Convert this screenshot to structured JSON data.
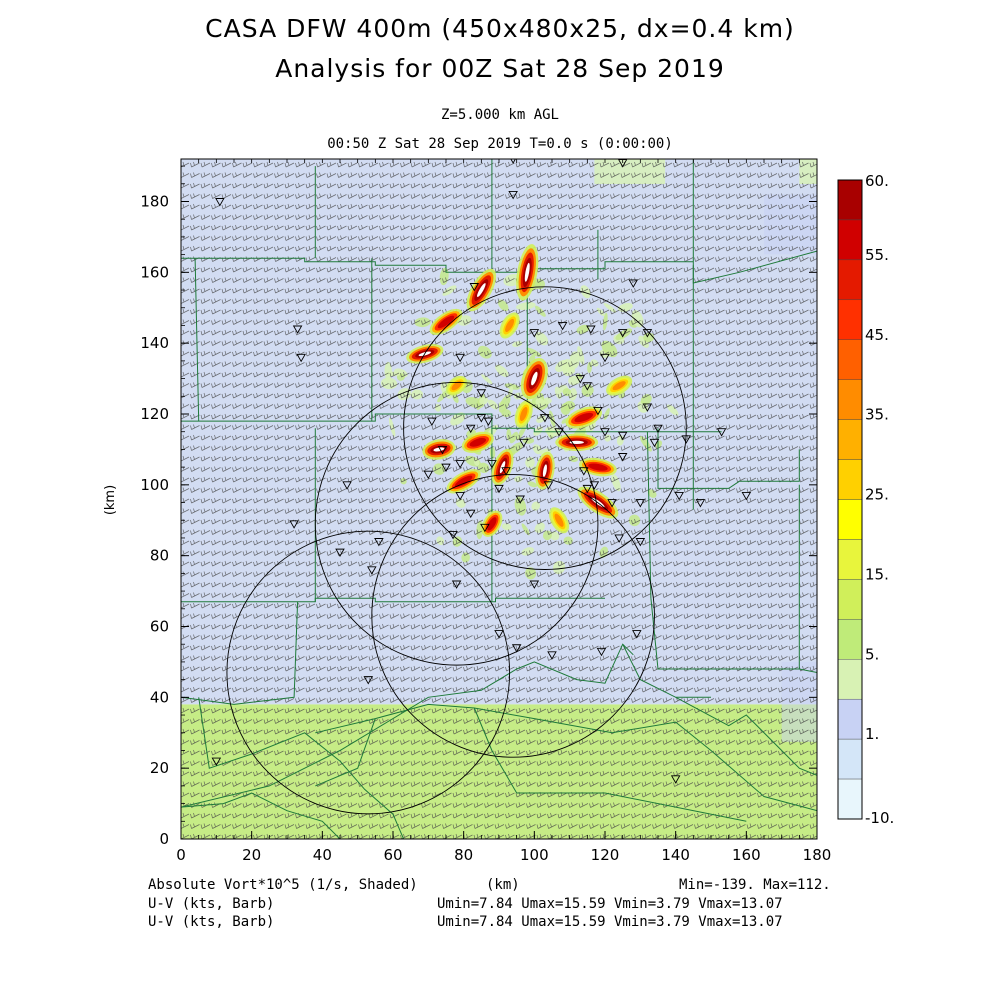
{
  "header": {
    "title_line1": "CASA DFW 400m (450x480x25, dx=0.4 km)",
    "title_line2": "Analysis for 00Z Sat 28 Sep 2019",
    "level": "Z=5.000 km AGL",
    "valid_time": "00:50 Z Sat 28 Sep 2019     T=0.0 s (0:00:00)"
  },
  "footer": {
    "field_label": "Absolute Vort*10^5 (1/s, Shaded)",
    "x_unit": "(km)",
    "minmax": "Min=-139. Max=112.",
    "barb1_label": "U-V (kts, Barb)",
    "barb1_stats": "Umin=7.84 Umax=15.59 Vmin=3.79 Vmax=13.07",
    "barb2_label": "U-V (kts, Barb)",
    "barb2_stats": "Umin=7.84 Umax=15.59 Vmin=3.79 Vmax=13.07"
  },
  "chart_data": {
    "type": "heatmap",
    "xlabel": "(km)",
    "ylabel": "(km)",
    "xlim": [
      0,
      180
    ],
    "ylim": [
      0,
      192
    ],
    "x_ticks": [
      "0",
      "20",
      "40",
      "60",
      "80",
      "100",
      "120",
      "140",
      "160",
      "180"
    ],
    "y_ticks": [
      "0",
      "20",
      "40",
      "60",
      "80",
      "100",
      "120",
      "140",
      "160",
      "180"
    ],
    "colorbar": {
      "labels": [
        "60.",
        "55.",
        "45.",
        "35.",
        "25.",
        "15.",
        "5.",
        "1.",
        "-10."
      ],
      "colors": [
        "#a80000",
        "#d00000",
        "#e41a00",
        "#ff3000",
        "#ff6000",
        "#ff8c00",
        "#ffb000",
        "#ffd000",
        "#ffff00",
        "#e8f53c",
        "#d0ef5a",
        "#bfeb79",
        "#d8f2b4",
        "#c8d2f4",
        "#d4e6f8",
        "#e8f6fc"
      ]
    },
    "background_colors": {
      "upper": "#d2dcf2",
      "lower": "#c6ec86"
    },
    "radar_rings": [
      {
        "cx": 103,
        "cy": 116,
        "r": 40
      },
      {
        "cx": 78,
        "cy": 89,
        "r": 40
      },
      {
        "cx": 94,
        "cy": 63,
        "r": 40
      },
      {
        "cx": 53,
        "cy": 47,
        "r": 40
      }
    ],
    "radar_sites": [
      [
        11,
        180
      ],
      [
        33,
        144
      ],
      [
        34,
        136
      ],
      [
        47,
        100
      ],
      [
        32,
        89
      ],
      [
        45,
        81
      ],
      [
        56,
        84
      ],
      [
        54,
        76
      ],
      [
        78,
        72
      ],
      [
        90,
        58
      ],
      [
        95,
        54
      ],
      [
        105,
        52
      ],
      [
        119,
        53
      ],
      [
        129,
        58
      ],
      [
        10,
        22
      ],
      [
        140,
        17
      ],
      [
        53,
        45
      ],
      [
        71,
        118
      ],
      [
        74,
        110
      ],
      [
        70,
        103
      ],
      [
        75,
        105
      ],
      [
        79,
        106
      ],
      [
        79,
        97
      ],
      [
        82,
        116
      ],
      [
        85,
        119
      ],
      [
        87,
        118
      ],
      [
        88,
        106
      ],
      [
        90,
        99
      ],
      [
        92,
        104
      ],
      [
        96,
        96
      ],
      [
        97,
        112
      ],
      [
        103,
        119
      ],
      [
        107,
        115
      ],
      [
        104,
        100
      ],
      [
        115,
        99
      ],
      [
        114,
        104
      ],
      [
        117,
        100
      ],
      [
        122,
        95
      ],
      [
        125,
        108
      ],
      [
        118,
        121
      ],
      [
        120,
        115
      ],
      [
        125,
        114
      ],
      [
        132,
        122
      ],
      [
        134,
        112
      ],
      [
        135,
        116
      ],
      [
        113,
        130
      ],
      [
        115,
        128
      ],
      [
        120,
        136
      ],
      [
        125,
        143
      ],
      [
        132,
        143
      ],
      [
        128,
        157
      ],
      [
        116,
        144
      ],
      [
        108,
        145
      ],
      [
        100,
        143
      ],
      [
        85,
        126
      ],
      [
        82,
        92
      ],
      [
        77,
        86
      ],
      [
        86,
        88
      ],
      [
        100,
        72
      ],
      [
        83,
        156
      ],
      [
        79,
        136
      ],
      [
        147,
        95
      ],
      [
        141,
        97
      ],
      [
        124,
        85
      ],
      [
        130,
        84
      ],
      [
        130,
        95
      ],
      [
        143,
        113
      ],
      [
        153,
        115
      ],
      [
        94,
        182
      ],
      [
        94,
        192
      ],
      [
        125,
        191
      ],
      [
        160,
        97
      ]
    ],
    "vorticity_cores": [
      {
        "x": 98,
        "y": 160,
        "a": 6,
        "b": 1.5,
        "ang": 80,
        "v": 60
      },
      {
        "x": 85,
        "y": 155,
        "a": 5,
        "b": 1.5,
        "ang": 60,
        "v": 55
      },
      {
        "x": 75,
        "y": 146,
        "a": 4,
        "b": 1.3,
        "ang": 35,
        "v": 50
      },
      {
        "x": 69,
        "y": 137,
        "a": 4,
        "b": 1.3,
        "ang": 15,
        "v": 55
      },
      {
        "x": 100,
        "y": 130,
        "a": 4.5,
        "b": 1.8,
        "ang": 70,
        "v": 60
      },
      {
        "x": 114,
        "y": 119,
        "a": 4,
        "b": 1.4,
        "ang": 20,
        "v": 45
      },
      {
        "x": 112,
        "y": 112,
        "a": 4.5,
        "b": 1.3,
        "ang": 0,
        "v": 55
      },
      {
        "x": 118,
        "y": 105,
        "a": 4,
        "b": 1.3,
        "ang": -10,
        "v": 45
      },
      {
        "x": 118,
        "y": 95,
        "a": 5,
        "b": 1.5,
        "ang": -35,
        "v": 55
      },
      {
        "x": 103,
        "y": 104,
        "a": 4,
        "b": 1.4,
        "ang": 80,
        "v": 55
      },
      {
        "x": 91,
        "y": 105,
        "a": 4,
        "b": 1.4,
        "ang": 70,
        "v": 60
      },
      {
        "x": 84,
        "y": 112,
        "a": 3.5,
        "b": 1.4,
        "ang": 20,
        "v": 45
      },
      {
        "x": 73,
        "y": 110,
        "a": 3.5,
        "b": 1.5,
        "ang": 10,
        "v": 55
      },
      {
        "x": 80,
        "y": 101,
        "a": 4,
        "b": 1.3,
        "ang": 30,
        "v": 50
      },
      {
        "x": 88,
        "y": 89,
        "a": 3,
        "b": 1.3,
        "ang": 60,
        "v": 45
      },
      {
        "x": 97,
        "y": 120,
        "a": 3,
        "b": 1.2,
        "ang": 70,
        "v": 30
      },
      {
        "x": 93,
        "y": 145,
        "a": 3,
        "b": 1.2,
        "ang": 60,
        "v": 30
      },
      {
        "x": 78,
        "y": 128,
        "a": 2.5,
        "b": 1.2,
        "ang": 40,
        "v": 30
      },
      {
        "x": 107,
        "y": 90,
        "a": 3,
        "b": 1.2,
        "ang": -60,
        "v": 30
      },
      {
        "x": 124,
        "y": 128,
        "a": 3,
        "b": 1.2,
        "ang": 30,
        "v": 25
      }
    ]
  }
}
